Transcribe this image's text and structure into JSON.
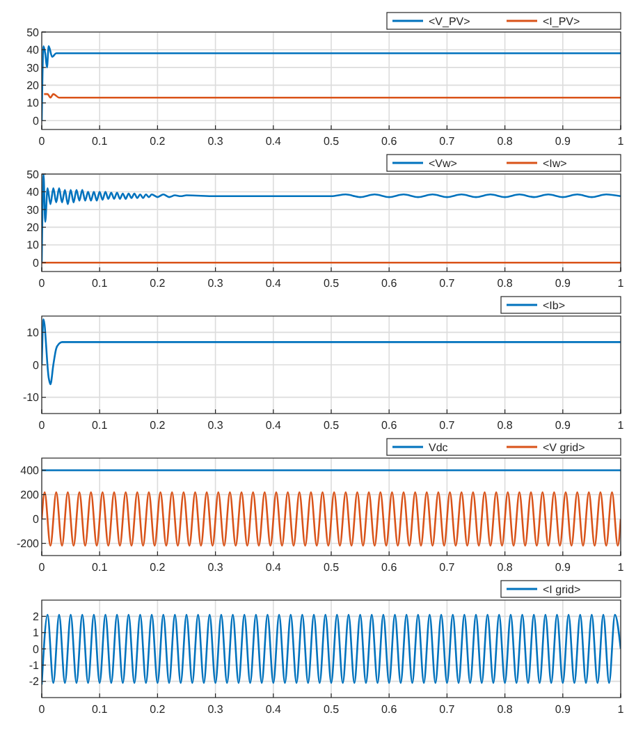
{
  "chart_data": [
    {
      "type": "line",
      "xlim": [
        0,
        1
      ],
      "xticks": [
        0,
        0.1,
        0.2,
        0.3,
        0.4,
        0.5,
        0.6,
        0.7,
        0.8,
        0.9,
        1
      ],
      "ylim": [
        -5,
        50
      ],
      "yticks": [
        0,
        10,
        20,
        30,
        40,
        50
      ],
      "grid": true,
      "legend": "top right",
      "series": [
        {
          "name": "<V_PV>",
          "color": "#0072bd",
          "x": [
            0,
            0.003,
            0.006,
            0.009,
            0.012,
            0.018,
            0.025,
            0.04,
            1
          ],
          "values": [
            0,
            42,
            38,
            30,
            42,
            36,
            38,
            38,
            38
          ]
        },
        {
          "name": "<I_PV>",
          "color": "#d95319",
          "x": [
            0.004,
            0.01,
            0.015,
            0.02,
            0.03,
            0.05,
            1
          ],
          "values": [
            15,
            15,
            13,
            15,
            13,
            13,
            13
          ]
        }
      ]
    },
    {
      "type": "line",
      "xlim": [
        0,
        1
      ],
      "xticks": [
        0,
        0.1,
        0.2,
        0.3,
        0.4,
        0.5,
        0.6,
        0.7,
        0.8,
        0.9,
        1
      ],
      "ylim": [
        -5,
        50
      ],
      "yticks": [
        0,
        10,
        20,
        30,
        40,
        50
      ],
      "grid": true,
      "legend": "top right",
      "series": [
        {
          "name": "<Vw>",
          "color": "#0072bd",
          "x": [
            0,
            0.003,
            0.006,
            0.01,
            0.015,
            0.02,
            0.025,
            0.03,
            0.035,
            0.04,
            0.045,
            0.05,
            0.055,
            0.06,
            0.065,
            0.07,
            0.075,
            0.08,
            0.085,
            0.09,
            0.095,
            0.1,
            0.105,
            0.11,
            0.115,
            0.12,
            0.125,
            0.13,
            0.135,
            0.14,
            0.145,
            0.15,
            0.155,
            0.16,
            0.165,
            0.17,
            0.175,
            0.18,
            0.185,
            0.19,
            0.2,
            0.21,
            0.22,
            0.23,
            0.24,
            0.25,
            0.3,
            0.4,
            0.5,
            0.525,
            0.55,
            0.575,
            0.6,
            0.625,
            0.65,
            0.675,
            0.7,
            0.725,
            0.75,
            0.775,
            0.8,
            0.825,
            0.85,
            0.875,
            0.9,
            0.925,
            0.95,
            0.975,
            1
          ],
          "values": [
            0,
            50,
            23,
            42,
            33,
            42,
            34,
            42,
            34,
            41,
            33,
            41,
            34,
            41,
            35,
            41,
            35,
            40,
            35,
            40,
            35,
            40,
            35.5,
            40,
            36,
            39.5,
            36,
            39.5,
            36,
            39,
            36,
            39,
            36.5,
            39,
            36.5,
            38.5,
            36.5,
            38.5,
            37,
            38.5,
            37,
            38.5,
            37,
            38,
            37.5,
            38,
            37.5,
            37.5,
            37.5,
            38.5,
            37,
            38.5,
            37,
            38.5,
            37,
            38.5,
            37,
            38.5,
            37,
            38.5,
            37,
            38.5,
            37,
            38.5,
            37,
            38.5,
            37,
            38.5,
            37.5
          ]
        },
        {
          "name": "<Iw>",
          "color": "#d95319",
          "x": [
            0,
            1
          ],
          "values": [
            0,
            0
          ]
        }
      ]
    },
    {
      "type": "line",
      "xlim": [
        0,
        1
      ],
      "xticks": [
        0,
        0.1,
        0.2,
        0.3,
        0.4,
        0.5,
        0.6,
        0.7,
        0.8,
        0.9,
        1
      ],
      "ylim": [
        -15,
        15
      ],
      "yticks": [
        -10,
        0,
        10
      ],
      "grid": true,
      "legend": "top right",
      "series": [
        {
          "name": "<Ib>",
          "color": "#0072bd",
          "x": [
            0,
            0.003,
            0.012,
            0.015,
            0.02,
            0.025,
            0.03,
            0.035,
            1
          ],
          "values": [
            0,
            14,
            -4,
            -6,
            0,
            5,
            6.5,
            7,
            7
          ]
        }
      ]
    },
    {
      "type": "line",
      "xlim": [
        0,
        1
      ],
      "xticks": [
        0,
        0.1,
        0.2,
        0.3,
        0.4,
        0.5,
        0.6,
        0.7,
        0.8,
        0.9,
        1
      ],
      "ylim": [
        -300,
        500
      ],
      "yticks": [
        -200,
        0,
        200,
        400
      ],
      "grid": true,
      "legend": "top right",
      "series": [
        {
          "name": "Vdc",
          "color": "#0072bd",
          "x": [
            0,
            1
          ],
          "values": [
            400,
            400
          ]
        },
        {
          "name": "<V grid>",
          "color": "#d95319",
          "x": [
            0,
            0.005,
            0.015,
            0.025,
            0.035,
            0.045,
            0.055,
            0.065,
            0.075,
            0.085,
            0.095,
            0.105,
            0.115,
            0.125,
            0.135,
            0.145,
            0.155,
            0.165,
            0.175,
            0.185,
            0.195,
            0.205,
            0.215,
            0.225,
            0.235,
            0.245,
            0.255,
            0.265,
            0.275,
            0.285,
            0.295,
            0.305,
            0.315,
            0.325,
            0.335,
            0.345,
            0.355,
            0.365,
            0.375,
            0.385,
            0.395,
            0.405,
            0.415,
            0.425,
            0.435,
            0.445,
            0.455,
            0.465,
            0.475,
            0.485,
            0.495,
            0.505,
            0.515,
            0.525,
            0.535,
            0.545,
            0.555,
            0.565,
            0.575,
            0.585,
            0.595,
            0.605,
            0.615,
            0.625,
            0.635,
            0.645,
            0.655,
            0.665,
            0.675,
            0.685,
            0.695,
            0.705,
            0.715,
            0.725,
            0.735,
            0.745,
            0.755,
            0.765,
            0.775,
            0.785,
            0.795,
            0.805,
            0.815,
            0.825,
            0.835,
            0.845,
            0.855,
            0.865,
            0.875,
            0.885,
            0.895,
            0.905,
            0.915,
            0.925,
            0.935,
            0.945,
            0.955,
            0.965,
            0.975,
            0.985,
            0.995,
            1
          ],
          "values": [
            0,
            220,
            -220,
            220,
            -220,
            220,
            -220,
            220,
            -220,
            220,
            -220,
            220,
            -220,
            220,
            -220,
            220,
            -220,
            220,
            -220,
            220,
            -220,
            220,
            -220,
            220,
            -220,
            220,
            -220,
            220,
            -220,
            220,
            -220,
            220,
            -220,
            220,
            -220,
            220,
            -220,
            220,
            -220,
            220,
            -220,
            220,
            -220,
            220,
            -220,
            220,
            -220,
            220,
            -220,
            220,
            -220,
            220,
            -220,
            220,
            -220,
            220,
            -220,
            220,
            -220,
            220,
            -220,
            220,
            -220,
            220,
            -220,
            220,
            -220,
            220,
            -220,
            220,
            -220,
            220,
            -220,
            220,
            -220,
            220,
            -220,
            220,
            -220,
            220,
            -220,
            220,
            -220,
            220,
            -220,
            220,
            -220,
            220,
            -220,
            220,
            -220,
            220,
            -220,
            220,
            -220,
            220,
            -220,
            220,
            -220,
            220,
            -220,
            0
          ]
        }
      ]
    },
    {
      "type": "line",
      "xlim": [
        0,
        1
      ],
      "xticks": [
        0,
        0.1,
        0.2,
        0.3,
        0.4,
        0.5,
        0.6,
        0.7,
        0.8,
        0.9,
        1
      ],
      "ylim": [
        -3,
        3
      ],
      "yticks": [
        -2,
        -1,
        0,
        1,
        2
      ],
      "grid": true,
      "legend": "top right",
      "series": [
        {
          "name": "<I grid>",
          "color": "#0072bd",
          "x": [
            0,
            0.01,
            0.02,
            0.03,
            0.04,
            0.05,
            0.06,
            0.07,
            0.08,
            0.09,
            0.1,
            0.11,
            0.12,
            0.13,
            0.14,
            0.15,
            0.16,
            0.17,
            0.18,
            0.19,
            0.2,
            0.21,
            0.22,
            0.23,
            0.24,
            0.25,
            0.26,
            0.27,
            0.28,
            0.29,
            0.3,
            0.31,
            0.32,
            0.33,
            0.34,
            0.35,
            0.36,
            0.37,
            0.38,
            0.39,
            0.4,
            0.41,
            0.42,
            0.43,
            0.44,
            0.45,
            0.46,
            0.47,
            0.48,
            0.49,
            0.5,
            0.51,
            0.52,
            0.53,
            0.54,
            0.55,
            0.56,
            0.57,
            0.58,
            0.59,
            0.6,
            0.61,
            0.62,
            0.63,
            0.64,
            0.65,
            0.66,
            0.67,
            0.68,
            0.69,
            0.7,
            0.71,
            0.72,
            0.73,
            0.74,
            0.75,
            0.76,
            0.77,
            0.78,
            0.79,
            0.8,
            0.81,
            0.82,
            0.83,
            0.84,
            0.85,
            0.86,
            0.87,
            0.88,
            0.89,
            0.9,
            0.91,
            0.92,
            0.93,
            0.94,
            0.95,
            0.96,
            0.97,
            0.98,
            0.99,
            1
          ],
          "values": [
            -2.2,
            2.1,
            -2.1,
            2.1,
            -2.1,
            2.1,
            -2.1,
            2.1,
            -2.1,
            2.1,
            -2.1,
            2.1,
            -2.1,
            2.1,
            -2.1,
            2.1,
            -2.1,
            2.1,
            -2.1,
            2.1,
            -2.1,
            2.1,
            -2.1,
            2.1,
            -2.1,
            2.1,
            -2.1,
            2.1,
            -2.1,
            2.1,
            -2.1,
            2.1,
            -2.1,
            2.1,
            -2.1,
            2.1,
            -2.1,
            2.1,
            -2.1,
            2.1,
            -2.1,
            2.1,
            -2.1,
            2.1,
            -2.1,
            2.1,
            -2.1,
            2.1,
            -2.1,
            2.1,
            -2.1,
            2.1,
            -2.1,
            2.1,
            -2.1,
            2.1,
            -2.1,
            2.1,
            -2.1,
            2.1,
            -2.1,
            2.1,
            -2.1,
            2.1,
            -2.1,
            2.1,
            -2.1,
            2.1,
            -2.1,
            2.1,
            -2.1,
            2.1,
            -2.1,
            2.1,
            -2.1,
            2.1,
            -2.1,
            2.1,
            -2.1,
            2.1,
            -2.1,
            2.1,
            -2.1,
            2.1,
            -2.1,
            2.1,
            -2.1,
            2.1,
            -2.1,
            2.1,
            -2.1,
            2.1,
            -2.1,
            2.1,
            -2.1,
            2.1,
            -2.1,
            2.1,
            -2.1,
            2.1,
            0
          ]
        }
      ]
    }
  ]
}
